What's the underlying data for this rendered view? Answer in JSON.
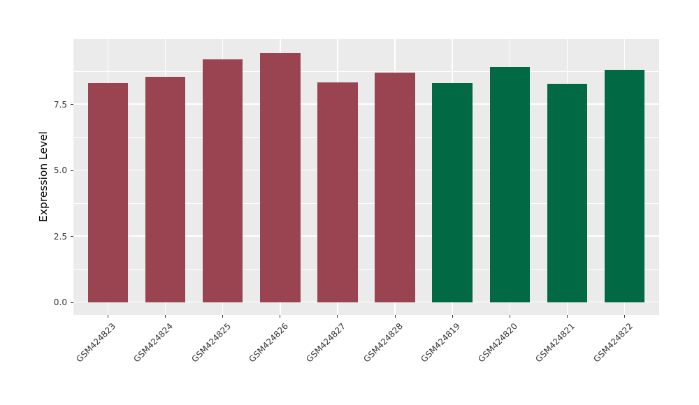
{
  "figure": {
    "background": "#FFFFFF"
  },
  "chart_data": {
    "type": "bar",
    "title": "",
    "xlabel": "",
    "ylabel": "Expression Level",
    "categories": [
      "GSM424823",
      "GSM424824",
      "GSM424825",
      "GSM424826",
      "GSM424827",
      "GSM424828",
      "GSM424819",
      "GSM424820",
      "GSM424821",
      "GSM424822"
    ],
    "values": [
      8.3,
      8.56,
      9.21,
      9.45,
      8.34,
      8.71,
      8.31,
      8.92,
      8.28,
      8.81
    ],
    "groups": [
      "group1",
      "group1",
      "group1",
      "group1",
      "group1",
      "group1",
      "group2",
      "group2",
      "group2",
      "group2"
    ],
    "group_colors": {
      "group1": "#9B4451",
      "group2": "#026945"
    },
    "y_ticks": [
      0,
      2.5,
      5,
      7.5
    ],
    "y_tick_labels": [
      "0.0",
      "2.5",
      "5.0",
      "7.5"
    ],
    "y_minor_ticks": [
      1.25,
      3.75,
      6.25,
      8.75
    ],
    "ylim_panel": [
      -0.475,
      9.975
    ],
    "bar_rel_width": 0.7,
    "x_slot_pad": 0.6,
    "x_label_angle_deg": 45,
    "panel_bg": "#EBEBEB",
    "grid_color": "#FFFFFF",
    "tick_text_color": "#333333",
    "legend": "none",
    "grid": "on"
  }
}
